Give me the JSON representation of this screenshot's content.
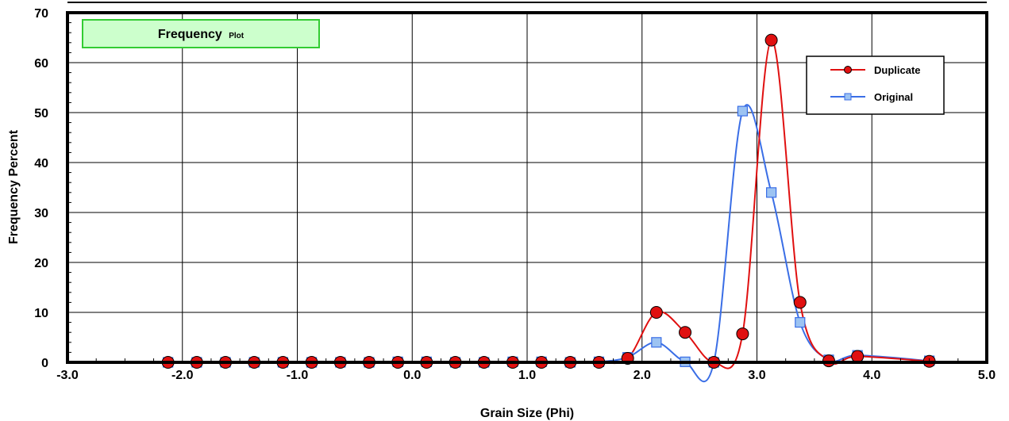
{
  "chart_data": {
    "type": "line",
    "title": "Frequency",
    "subtitle": "Plot",
    "xlabel": "Grain Size (Phi)",
    "ylabel": "Frequency Percent",
    "xlim": [
      -3.0,
      5.0
    ],
    "ylim": [
      0,
      70
    ],
    "x_ticks": [
      -3.0,
      -2.0,
      -1.0,
      0.0,
      1.0,
      2.0,
      3.0,
      4.0,
      5.0
    ],
    "x_tick_labels": [
      "-3.0",
      "-2.0",
      "-1.0",
      "0.0",
      "1.0",
      "2.0",
      "3.0",
      "4.0",
      "5.0"
    ],
    "y_ticks": [
      0,
      10,
      20,
      30,
      40,
      50,
      60,
      70
    ],
    "y_tick_labels": [
      "0",
      "10",
      "20",
      "30",
      "40",
      "50",
      "60",
      "70"
    ],
    "grid": true,
    "legend_position": "top-right",
    "series": [
      {
        "name": "Duplicate",
        "color": "#e01010",
        "marker_fill": "#e01010",
        "marker": "circle",
        "x": [
          -2.125,
          -1.875,
          -1.625,
          -1.375,
          -1.125,
          -0.875,
          -0.625,
          -0.375,
          -0.125,
          0.125,
          0.375,
          0.625,
          0.875,
          1.125,
          1.375,
          1.625,
          1.875,
          2.125,
          2.375,
          2.625,
          2.875,
          3.125,
          3.375,
          3.625,
          3.875,
          4.5
        ],
        "y": [
          0,
          0,
          0,
          0,
          0,
          0,
          0,
          0,
          0,
          0,
          0,
          0,
          0,
          0,
          0,
          0,
          0.8,
          10,
          6,
          0,
          5.7,
          64.5,
          12,
          0.3,
          1.2,
          0.2
        ]
      },
      {
        "name": "Original",
        "color": "#3a6ee6",
        "marker_fill": "#9cc3f2",
        "marker": "square",
        "x": [
          -2.125,
          -1.875,
          -1.625,
          -1.375,
          -1.125,
          -0.875,
          -0.625,
          -0.375,
          -0.125,
          0.125,
          0.375,
          0.625,
          0.875,
          1.125,
          1.375,
          1.625,
          1.875,
          2.125,
          2.375,
          2.625,
          2.875,
          3.125,
          3.375,
          3.625,
          3.875,
          4.5
        ],
        "y": [
          0,
          0,
          0,
          0,
          0,
          0,
          0,
          0,
          0.1,
          0.1,
          0,
          0,
          0.1,
          0.1,
          0,
          0.1,
          1,
          4,
          0.1,
          0,
          50.3,
          34,
          8,
          0.5,
          1.4,
          0.3
        ]
      }
    ]
  }
}
